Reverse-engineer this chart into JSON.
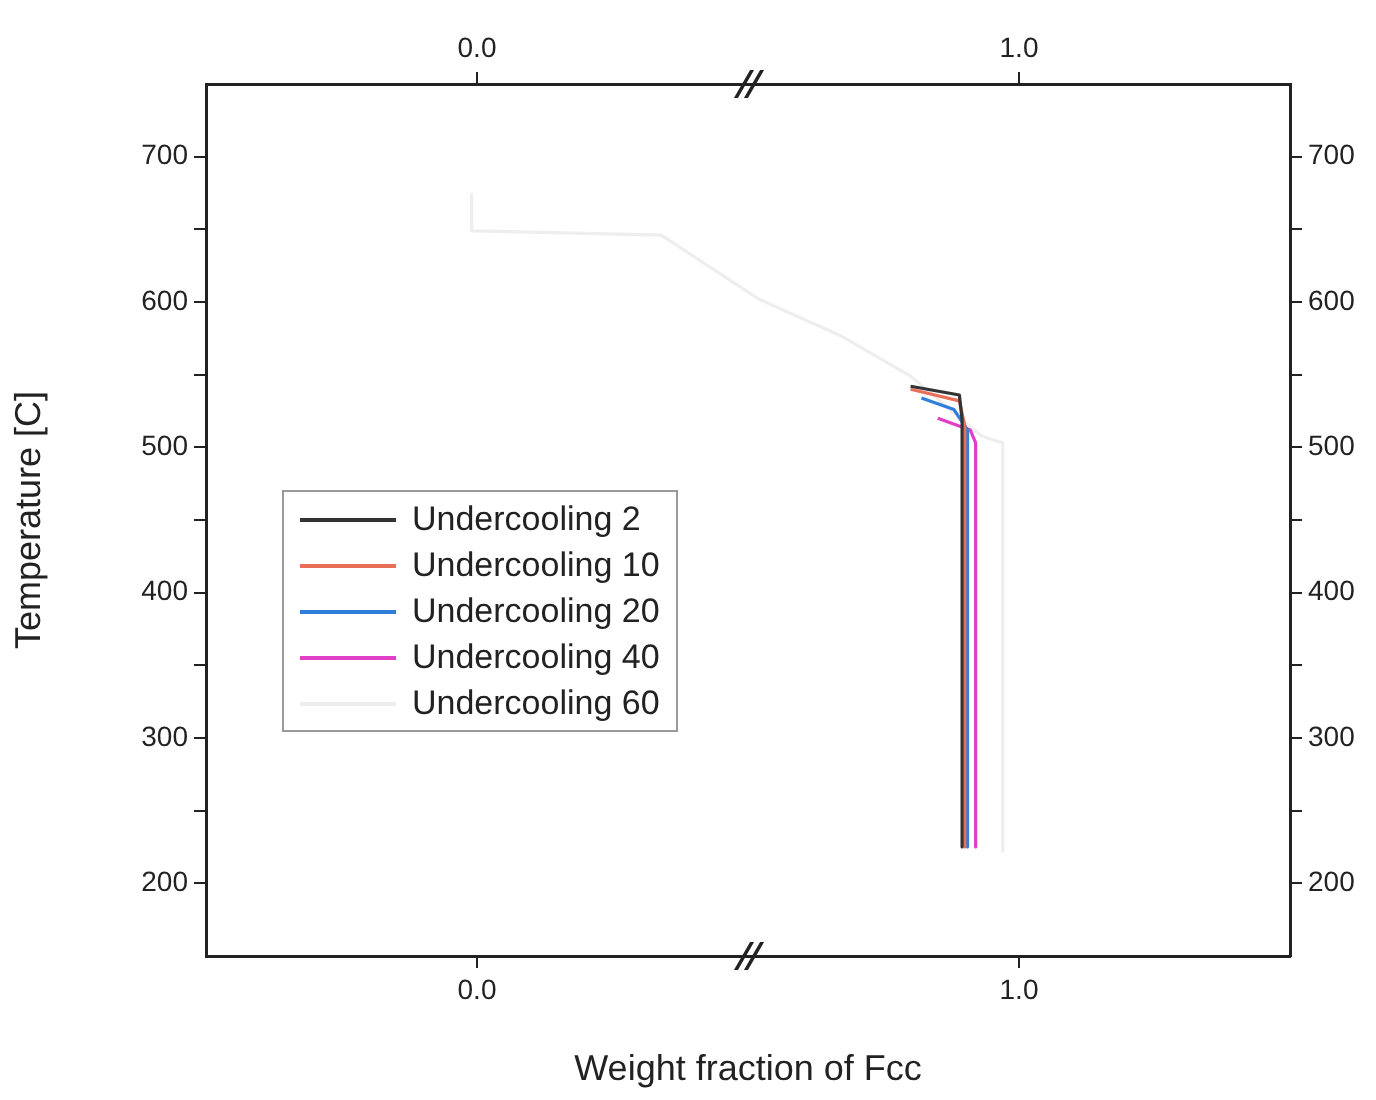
{
  "chart_data": {
    "type": "line",
    "xlabel": "Weight fraction of Fcc",
    "ylabel": "Temperature [C]",
    "xlim": [
      -0.5,
      1.5
    ],
    "xticks": [
      {
        "value": 0,
        "label": "0.0"
      },
      {
        "value": 1,
        "label": "1.0"
      }
    ],
    "x2lim": [
      -0.5,
      1.5
    ],
    "x2ticks": [
      {
        "value": 0,
        "label": "0.0"
      },
      {
        "value": 1,
        "label": "1.0"
      }
    ],
    "ylim": [
      150,
      750
    ],
    "yticks": [
      200,
      {
        "value": 250,
        "label": null
      },
      300,
      {
        "value": 350,
        "label": null
      },
      400,
      {
        "value": 450,
        "label": null
      },
      500,
      {
        "value": 550,
        "label": null
      },
      600,
      {
        "value": 650,
        "label": null
      },
      700
    ],
    "y2lim": [
      150,
      750
    ],
    "y2ticks": [
      200,
      {
        "value": 250,
        "label": null
      },
      300,
      {
        "value": 350,
        "label": null
      },
      400,
      {
        "value": 450,
        "label": null
      },
      500,
      {
        "value": 550,
        "label": null
      },
      600,
      {
        "value": 650,
        "label": null
      },
      700
    ],
    "grid": false,
    "legend": "left",
    "marker": "none",
    "line_style": "solid",
    "series": [
      {
        "name": "Undercooling 2",
        "color": "#333333",
        "x": [
          0.8,
          0.89,
          0.895,
          0.895
        ],
        "values": [
          542,
          536,
          519,
          225
        ]
      },
      {
        "name": "Undercooling 10",
        "color": "#e8705a",
        "x": [
          0.8,
          0.89,
          0.9,
          0.9
        ],
        "values": [
          540,
          532,
          515,
          225
        ]
      },
      {
        "name": "Undercooling 20",
        "color": "#2f7fd8",
        "x": [
          0.82,
          0.88,
          0.905,
          0.905
        ],
        "values": [
          534,
          526,
          512,
          225
        ]
      },
      {
        "name": "Undercooling 40",
        "color": "#e040c8",
        "x": [
          0.85,
          0.91,
          0.92,
          0.92
        ],
        "values": [
          520,
          512,
          503,
          225
        ]
      },
      {
        "name": "Undercooling 60",
        "color": "#eeeeee",
        "x": [
          -0.01,
          -0.01,
          0.34,
          0.52,
          0.67,
          0.8,
          0.93,
          0.97,
          0.97
        ],
        "values": [
          674,
          649,
          646,
          602,
          577,
          549,
          508,
          503,
          222
        ]
      }
    ]
  }
}
